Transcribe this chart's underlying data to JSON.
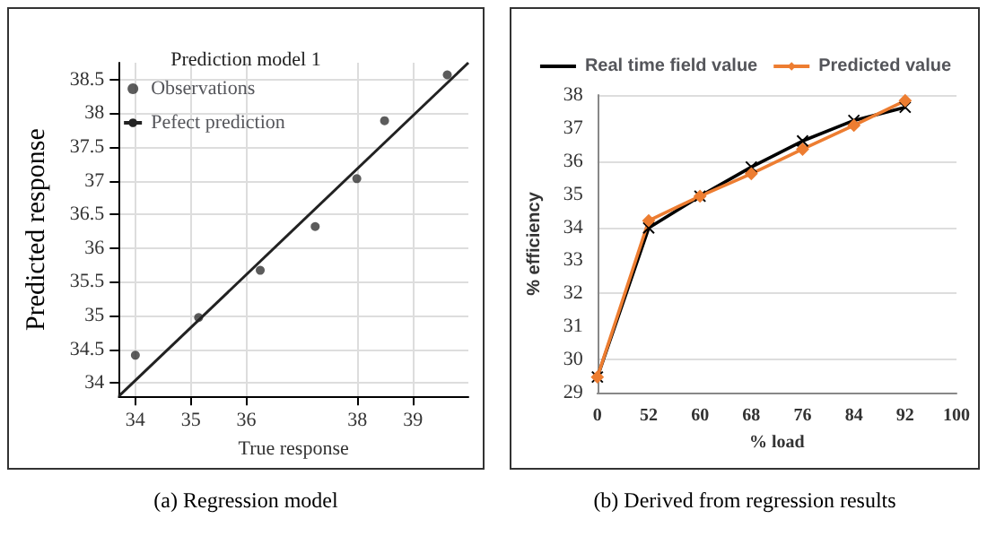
{
  "chart_data": [
    {
      "type": "scatter",
      "title": "Prediction model 1",
      "xlabel": "True response",
      "ylabel": "Predicted response",
      "xlim": [
        33.7,
        40
      ],
      "ylim": [
        33.8,
        38.75
      ],
      "xticks": [
        34,
        35,
        36,
        38,
        39
      ],
      "yticks": [
        34,
        34.5,
        35,
        35.5,
        36,
        36.5,
        37,
        37.5,
        38,
        38.5
      ],
      "grid": true,
      "legend": "top left",
      "annotations": [
        "(a) Regression model"
      ],
      "series": [
        {
          "name": "Observations",
          "color": "#333333",
          "marker": "circle",
          "x": [
            34.0,
            35.14,
            36.25,
            37.24,
            37.99,
            38.49,
            39.62
          ],
          "values": [
            34.41,
            34.97,
            35.67,
            36.32,
            37.03,
            37.89,
            38.57
          ]
        },
        {
          "name": "Pefect prediction",
          "type": "line",
          "color": "#222222",
          "marker": "none",
          "x": [
            33.7,
            40
          ],
          "values": [
            33.8,
            38.75
          ]
        }
      ]
    },
    {
      "type": "line",
      "xlabel": "% load",
      "ylabel": "% efficiency",
      "categories": [
        "0",
        "52",
        "60",
        "68",
        "76",
        "84",
        "92",
        "100"
      ],
      "ylim": [
        29,
        38
      ],
      "yticks": [
        29,
        30,
        31,
        32,
        33,
        34,
        35,
        36,
        37,
        38
      ],
      "grid": "y",
      "legend": "top",
      "annotations": [
        "(b) Derived from regression results"
      ],
      "series": [
        {
          "name": "Real time field value",
          "color": "#000000",
          "marker": "cross",
          "values": [
            29.47,
            33.98,
            34.94,
            35.82,
            36.61,
            37.23,
            37.63,
            null
          ]
        },
        {
          "name": "Predicted value",
          "color": "#ed7d31",
          "marker": "diamond",
          "values": [
            29.47,
            34.2,
            34.94,
            35.62,
            36.36,
            37.08,
            37.83,
            null
          ]
        }
      ]
    }
  ]
}
